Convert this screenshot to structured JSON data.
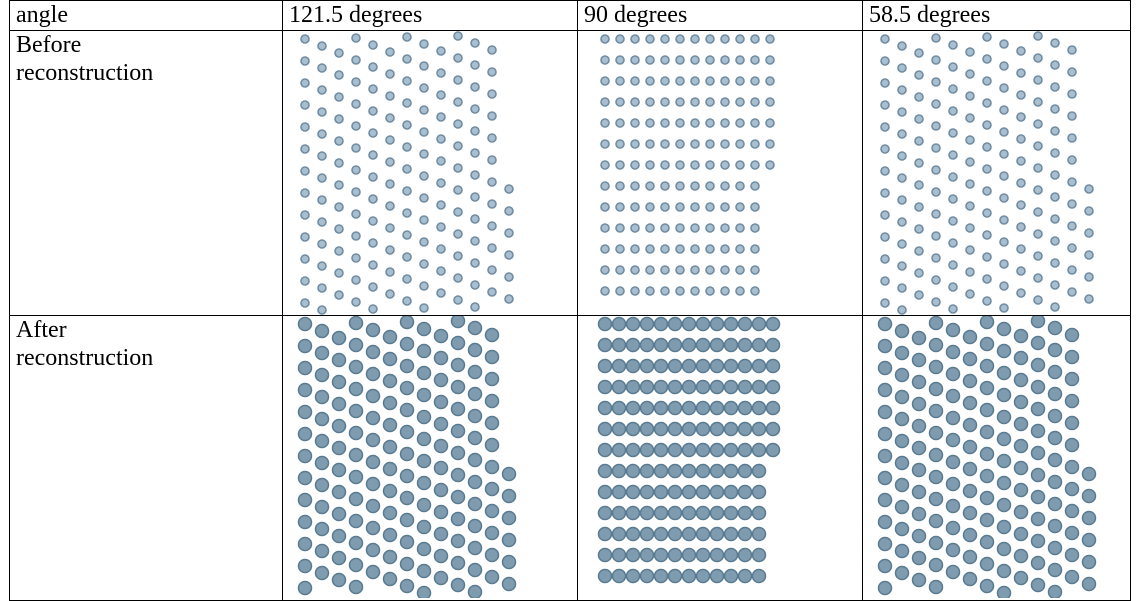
{
  "table": {
    "header": [
      "angle",
      "121.5 degrees",
      "90 degrees",
      "58.5 degrees"
    ],
    "rows": [
      [
        "Before reconstruction"
      ],
      [
        "After reconstruction"
      ]
    ]
  }
}
